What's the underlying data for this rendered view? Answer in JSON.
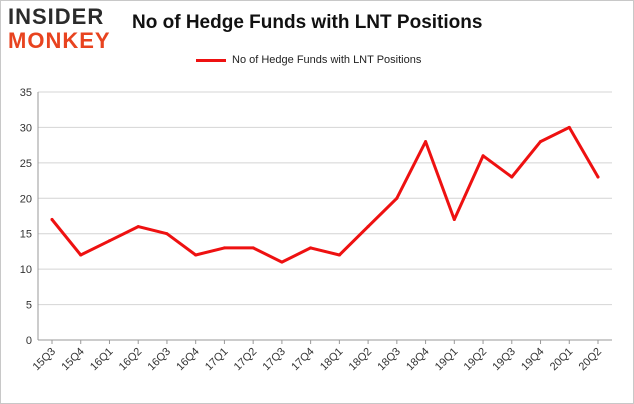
{
  "logo": {
    "top": "INSIDER",
    "bottom": "MONKEY"
  },
  "colors": {
    "series": "#ee1111",
    "grid": "#d4d4d4",
    "axis": "#999999",
    "logo_accent": "#e8431f"
  },
  "chart_data": {
    "type": "line",
    "title": "No of Hedge Funds with LNT Positions",
    "xlabel": "",
    "ylabel": "",
    "legend_position": "top",
    "grid": true,
    "ylim": [
      0,
      35
    ],
    "yticks": [
      0,
      5,
      10,
      15,
      20,
      25,
      30,
      35
    ],
    "categories": [
      "15Q3",
      "15Q4",
      "16Q1",
      "16Q2",
      "16Q3",
      "16Q4",
      "17Q1",
      "17Q2",
      "17Q3",
      "17Q4",
      "18Q1",
      "18Q2",
      "18Q3",
      "18Q4",
      "19Q1",
      "19Q2",
      "19Q3",
      "19Q4",
      "20Q1",
      "20Q2"
    ],
    "series": [
      {
        "name": "No of Hedge Funds with LNT Positions",
        "values": [
          17,
          12,
          14,
          16,
          15,
          12,
          13,
          13,
          11,
          13,
          12,
          16,
          20,
          28,
          17,
          26,
          23,
          28,
          30,
          23
        ]
      }
    ]
  }
}
